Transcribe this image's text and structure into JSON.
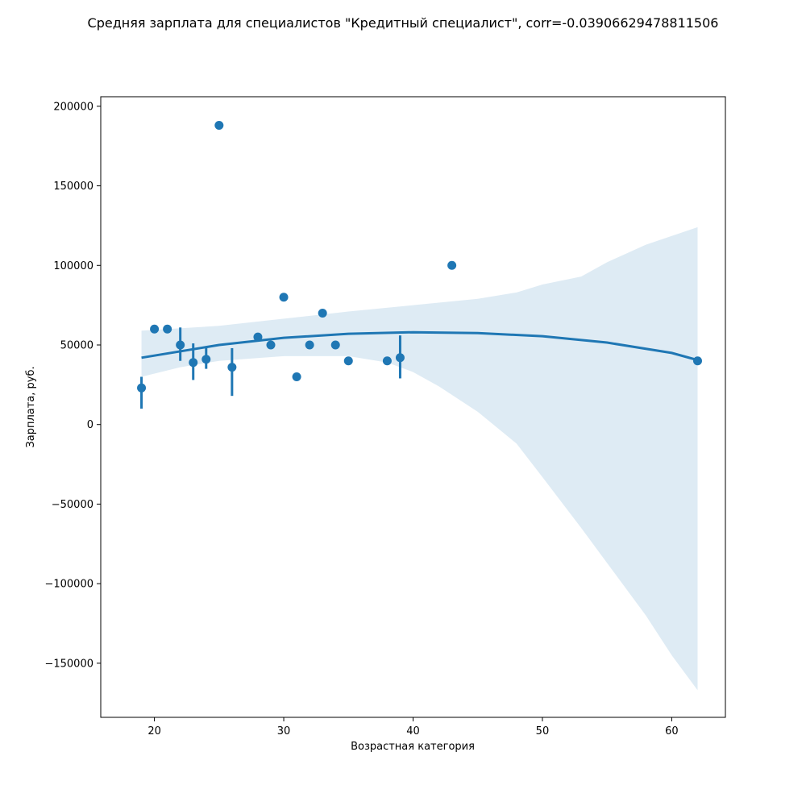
{
  "chart_data": {
    "type": "scatter",
    "title": "Средняя зарплата для специалистов \"Кредитный специалист\", corr=-0.03906629478811506",
    "xlabel": "Возрастная категория",
    "ylabel": "Зарплата, руб.",
    "xlim": [
      15.85,
      64.15
    ],
    "ylim": [
      -184000,
      206000
    ],
    "xticks": [
      20,
      30,
      40,
      50,
      60
    ],
    "yticks": [
      -150000,
      -100000,
      -50000,
      0,
      50000,
      100000,
      150000,
      200000
    ],
    "xtick_labels": [
      "20",
      "30",
      "40",
      "50",
      "60"
    ],
    "ytick_labels": [
      "−150000",
      "−100000",
      "−50000",
      "0",
      "50000",
      "100000",
      "150000",
      "200000"
    ],
    "grid": false,
    "colors": {
      "points": "#1f77b4",
      "fit": "#1f77b4",
      "band": "#1f77b4"
    },
    "points": [
      {
        "x": 19,
        "y": 23000,
        "err": [
          10000,
          30000
        ]
      },
      {
        "x": 20,
        "y": 60000
      },
      {
        "x": 21,
        "y": 60000
      },
      {
        "x": 22,
        "y": 50000,
        "err": [
          40000,
          61000
        ]
      },
      {
        "x": 23,
        "y": 39000,
        "err": [
          28000,
          51000
        ]
      },
      {
        "x": 24,
        "y": 41000,
        "err": [
          35000,
          48000
        ]
      },
      {
        "x": 25,
        "y": 188000
      },
      {
        "x": 26,
        "y": 36000,
        "err": [
          18000,
          48000
        ]
      },
      {
        "x": 28,
        "y": 55000
      },
      {
        "x": 29,
        "y": 50000
      },
      {
        "x": 30,
        "y": 80000
      },
      {
        "x": 31,
        "y": 30000
      },
      {
        "x": 32,
        "y": 50000
      },
      {
        "x": 33,
        "y": 70000
      },
      {
        "x": 34,
        "y": 50000
      },
      {
        "x": 35,
        "y": 40000
      },
      {
        "x": 38,
        "y": 40000
      },
      {
        "x": 39,
        "y": 42000,
        "err": [
          29000,
          56000
        ]
      },
      {
        "x": 43,
        "y": 100000
      },
      {
        "x": 62,
        "y": 40000
      }
    ],
    "fit_line": [
      {
        "x": 19,
        "y": 42000
      },
      {
        "x": 25,
        "y": 50000
      },
      {
        "x": 30,
        "y": 54500
      },
      {
        "x": 35,
        "y": 57000
      },
      {
        "x": 40,
        "y": 58000
      },
      {
        "x": 45,
        "y": 57500
      },
      {
        "x": 50,
        "y": 55500
      },
      {
        "x": 55,
        "y": 51500
      },
      {
        "x": 60,
        "y": 45000
      },
      {
        "x": 62,
        "y": 40500
      }
    ],
    "ci_upper": [
      {
        "x": 19,
        "y": 59000
      },
      {
        "x": 25,
        "y": 62000
      },
      {
        "x": 30,
        "y": 66500
      },
      {
        "x": 35,
        "y": 71000
      },
      {
        "x": 40,
        "y": 75000
      },
      {
        "x": 45,
        "y": 79000
      },
      {
        "x": 48,
        "y": 83000
      },
      {
        "x": 50,
        "y": 88000
      },
      {
        "x": 53,
        "y": 93000
      },
      {
        "x": 55,
        "y": 102000
      },
      {
        "x": 58,
        "y": 113000
      },
      {
        "x": 62,
        "y": 124000
      }
    ],
    "ci_lower": [
      {
        "x": 19,
        "y": 30000
      },
      {
        "x": 22,
        "y": 36000
      },
      {
        "x": 25,
        "y": 40000
      },
      {
        "x": 30,
        "y": 43000
      },
      {
        "x": 35,
        "y": 43000
      },
      {
        "x": 38,
        "y": 39000
      },
      {
        "x": 40,
        "y": 33000
      },
      {
        "x": 42,
        "y": 24000
      },
      {
        "x": 45,
        "y": 8000
      },
      {
        "x": 48,
        "y": -12000
      },
      {
        "x": 50,
        "y": -33000
      },
      {
        "x": 53,
        "y": -65000
      },
      {
        "x": 55,
        "y": -87000
      },
      {
        "x": 58,
        "y": -120000
      },
      {
        "x": 60,
        "y": -145000
      },
      {
        "x": 62,
        "y": -167000
      }
    ]
  }
}
